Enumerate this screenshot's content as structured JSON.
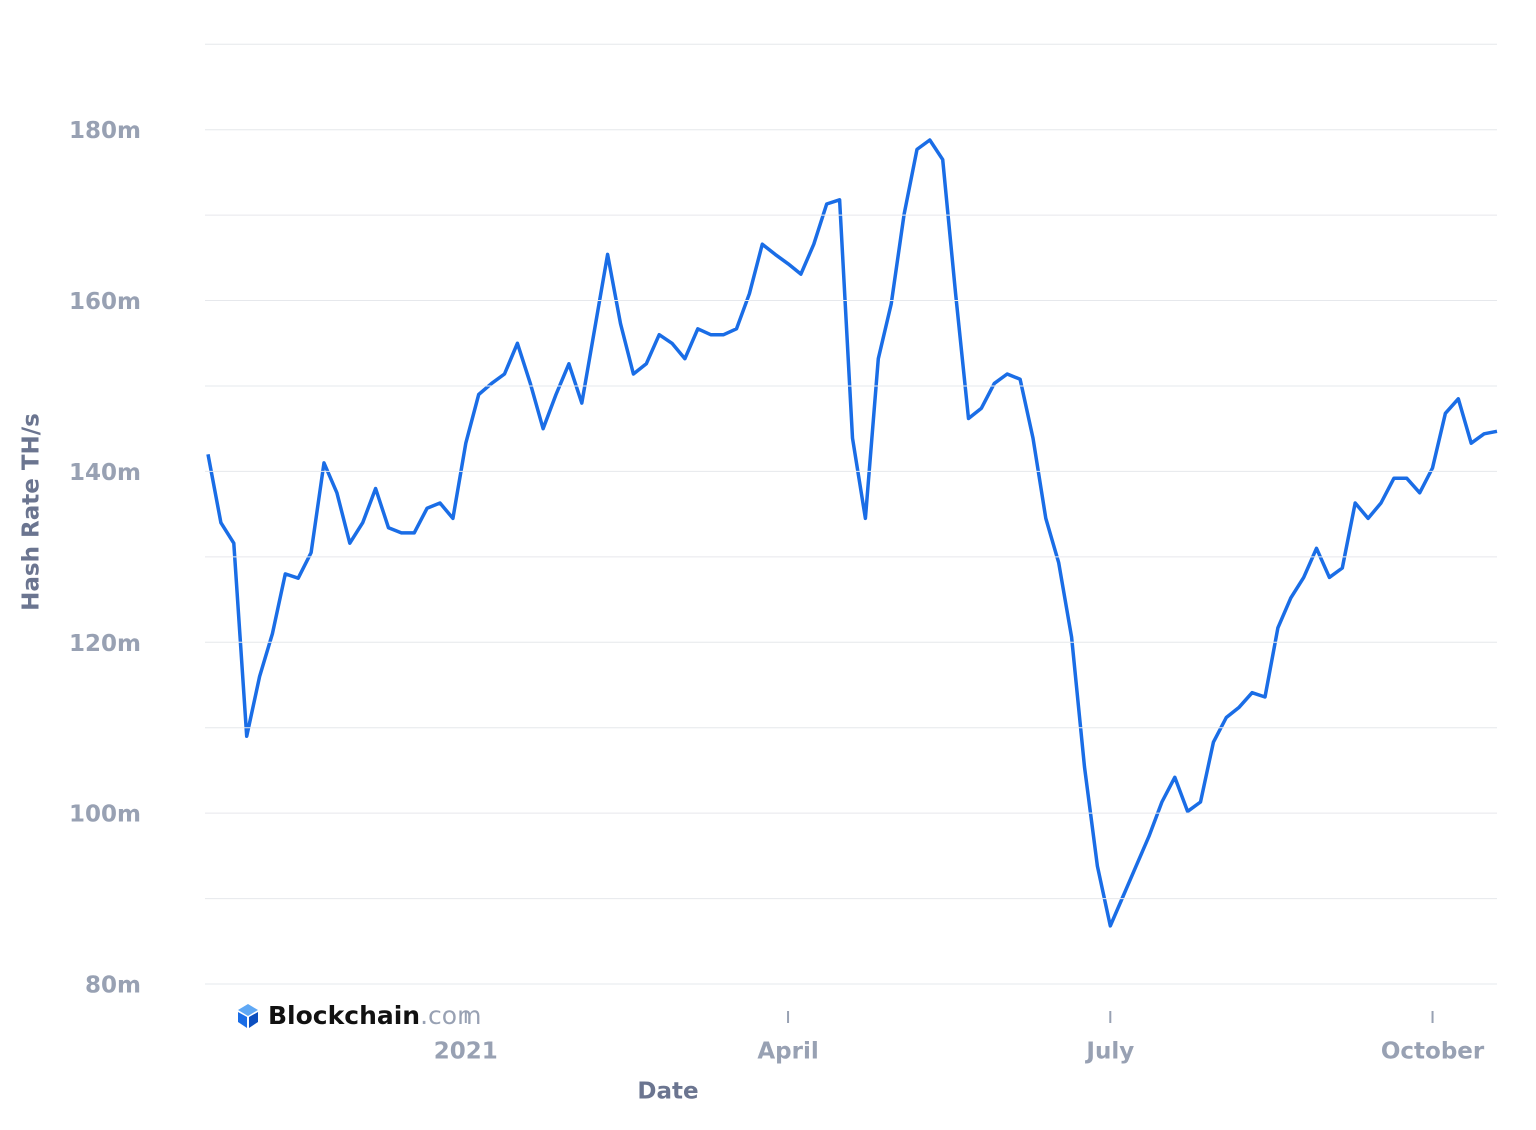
{
  "chart_data": {
    "type": "line",
    "y_label": "Hash Rate TH/s",
    "x_label": "Date",
    "watermark": {
      "name": "Blockchain",
      "suffix": ".com"
    },
    "categories": [
      null,
      null,
      null,
      null,
      null,
      null,
      null,
      null,
      null,
      null,
      null,
      null,
      null,
      null,
      null,
      null,
      null,
      null,
      null,
      null,
      "2021",
      null,
      null,
      null,
      null,
      null,
      null,
      null,
      null,
      null,
      null,
      null,
      null,
      null,
      null,
      null,
      null,
      null,
      null,
      null,
      null,
      null,
      null,
      null,
      null,
      "April",
      null,
      null,
      null,
      null,
      null,
      null,
      null,
      null,
      null,
      null,
      null,
      null,
      null,
      null,
      null,
      null,
      null,
      null,
      null,
      null,
      null,
      null,
      null,
      null,
      "July",
      null,
      null,
      null,
      null,
      null,
      null,
      null,
      null,
      null,
      null,
      null,
      null,
      null,
      null,
      null,
      null,
      null,
      null,
      null,
      null,
      null,
      null,
      null,
      null,
      "October",
      null,
      null,
      null,
      null,
      null
    ],
    "series": [
      {
        "name": "Hash Rate",
        "color": "#1a6de6",
        "values": [
          142,
          134,
          131.6,
          109,
          116,
          121,
          128,
          127.5,
          130.5,
          141,
          137.5,
          131.6,
          134,
          138,
          133.4,
          132.8,
          132.8,
          135.7,
          136.3,
          134.5,
          143.3,
          149,
          150.3,
          151.4,
          155,
          150.3,
          145,
          149,
          152.6,
          148,
          156.7,
          165.4,
          157.3,
          151.4,
          152.6,
          156,
          155,
          153.2,
          156.7,
          156,
          156,
          156.7,
          160.8,
          166.6,
          165.4,
          164.3,
          163.1,
          166.6,
          171.3,
          171.8,
          143.9,
          134.5,
          153.2,
          159.6,
          170.1,
          177.7,
          178.8,
          176.5,
          160.8,
          146.2,
          147.4,
          150.3,
          151.4,
          150.8,
          143.9,
          134.5,
          129.3,
          120.6,
          105.4,
          93.8,
          86.8,
          90.3,
          93.8,
          97.3,
          101.3,
          104.2,
          100.2,
          101.3,
          108.3,
          111.2,
          112.4,
          114.1,
          113.6,
          121.7,
          125.2,
          127.6,
          131,
          127.6,
          128.7,
          136.3,
          134.5,
          136.3,
          139.2,
          139.2,
          137.5,
          140.4,
          146.8,
          148.5,
          143.3,
          144.4,
          144.7
        ]
      }
    ],
    "ylim": [
      80,
      190.5
    ],
    "yticks": [
      {
        "value": 80,
        "label": "80m"
      },
      {
        "value": 100,
        "label": "100m"
      },
      {
        "value": 120,
        "label": "120m"
      },
      {
        "value": 140,
        "label": "140m"
      },
      {
        "value": 160,
        "label": "160m"
      },
      {
        "value": 180,
        "label": "180m"
      }
    ],
    "minor_yticks": [
      90,
      110,
      130,
      150,
      170,
      190
    ],
    "grid": true
  }
}
